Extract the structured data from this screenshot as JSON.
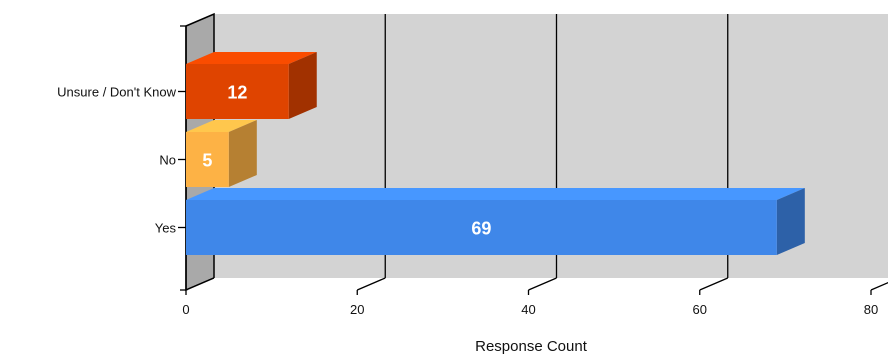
{
  "chart_data": {
    "type": "bar",
    "orientation": "horizontal",
    "three_d": true,
    "title": "",
    "xlabel": "Response Count",
    "ylabel": "",
    "xlim": [
      0,
      80
    ],
    "x_ticks": [
      0,
      20,
      40,
      60,
      80
    ],
    "grid": true,
    "categories": [
      "Unsure / Don't Know",
      "No",
      "Yes"
    ],
    "values": [
      12,
      5,
      69
    ],
    "colors": [
      "#df4400",
      "#fdb245",
      "#3f87e9"
    ],
    "background_color": "#d3d3d3"
  }
}
